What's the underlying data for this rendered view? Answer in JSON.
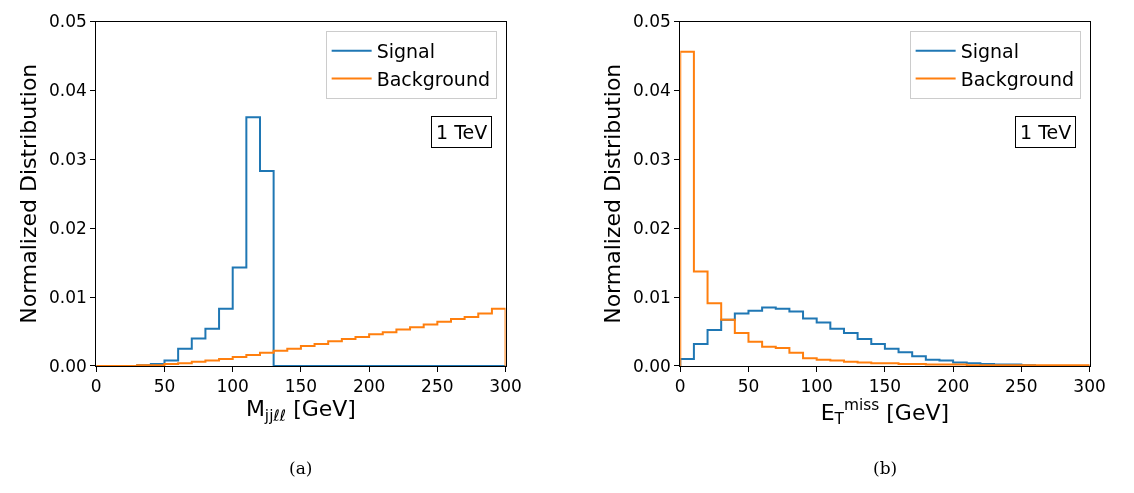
{
  "chart_data": [
    {
      "type": "histogram",
      "xlabel": "M$_{jjℓℓ}$ [GeV]",
      "ylabel": "Normalized Distribution",
      "bins": [
        0,
        10,
        20,
        30,
        40,
        50,
        60,
        70,
        80,
        90,
        100,
        110,
        120,
        130,
        140,
        150,
        160,
        170,
        180,
        190,
        200,
        210,
        220,
        230,
        240,
        250,
        260,
        270,
        280,
        290,
        300
      ],
      "series": [
        {
          "name": "Signal",
          "color": "#1f77b4",
          "values": [
            0,
            0,
            0,
            0.0001,
            0.0003,
            0.0008,
            0.0025,
            0.004,
            0.0054,
            0.0083,
            0.0143,
            0.0361,
            0.0283,
            0,
            0,
            0,
            0,
            0,
            0,
            0,
            0,
            0,
            0,
            0,
            0,
            0,
            0,
            0,
            0,
            0
          ]
        },
        {
          "name": "Background",
          "color": "#ff7f0e",
          "values": [
            0,
            0,
            0,
            0.0001,
            0.0001,
            0.0003,
            0.0004,
            0.0006,
            0.0008,
            0.001,
            0.0013,
            0.0016,
            0.0019,
            0.0022,
            0.0025,
            0.0029,
            0.0032,
            0.0036,
            0.0039,
            0.0042,
            0.0046,
            0.0049,
            0.0053,
            0.0056,
            0.006,
            0.0064,
            0.0068,
            0.0071,
            0.0076,
            0.0083
          ]
        }
      ],
      "xlim": [
        0,
        300
      ],
      "xticks": [
        0,
        50,
        100,
        150,
        200,
        250,
        300
      ],
      "ylim": [
        0,
        0.05
      ],
      "yticks": [
        {
          "value": 0,
          "label": "0.00"
        },
        {
          "value": 0.01,
          "label": "0.01"
        },
        {
          "value": 0.02,
          "label": "0.02"
        },
        {
          "value": 0.03,
          "label": "0.03"
        },
        {
          "value": 0.04,
          "label": "0.04"
        },
        {
          "value": 0.05,
          "label": "0.05"
        }
      ],
      "legend": "top right",
      "annotations": [
        "1 TeV",
        "(a)"
      ]
    },
    {
      "type": "histogram",
      "xlabel": "E$_{T}$$^{miss}$ [GeV]",
      "ylabel": "Normalized Distribution",
      "bins": [
        0,
        10,
        20,
        30,
        40,
        50,
        60,
        70,
        80,
        90,
        100,
        110,
        120,
        130,
        140,
        150,
        160,
        170,
        180,
        190,
        200,
        210,
        220,
        230,
        240,
        250,
        260,
        270,
        280,
        290,
        300
      ],
      "series": [
        {
          "name": "Signal",
          "color": "#1f77b4",
          "values": [
            0.001,
            0.0032,
            0.0052,
            0.0067,
            0.0076,
            0.008,
            0.0085,
            0.0083,
            0.0079,
            0.0069,
            0.0063,
            0.0054,
            0.0048,
            0.0039,
            0.0032,
            0.0025,
            0.002,
            0.0014,
            0.0009,
            0.0008,
            0.0005,
            0.0004,
            0.0003,
            0.0002,
            0.0002,
            0.0001,
            0,
            0,
            0,
            0
          ]
        },
        {
          "name": "Background",
          "color": "#ff7f0e",
          "values": [
            0.0456,
            0.0137,
            0.0091,
            0.0067,
            0.0048,
            0.0035,
            0.0028,
            0.0026,
            0.0019,
            0.0011,
            0.0009,
            0.0008,
            0.0006,
            0.0005,
            0.0004,
            0.0004,
            0.0003,
            0.0003,
            0.0002,
            0.0002,
            0.0002,
            0.0001,
            0.0001,
            0.0001,
            0.0001,
            0.0001,
            0.0001,
            0.0001,
            0.0001,
            0.0001
          ]
        }
      ],
      "xlim": [
        0,
        300
      ],
      "xticks": [
        0,
        50,
        100,
        150,
        200,
        250,
        300
      ],
      "ylim": [
        0,
        0.05
      ],
      "yticks": [
        {
          "value": 0,
          "label": "0.00"
        },
        {
          "value": 0.01,
          "label": "0.01"
        },
        {
          "value": 0.02,
          "label": "0.02"
        },
        {
          "value": 0.03,
          "label": "0.03"
        },
        {
          "value": 0.04,
          "label": "0.04"
        },
        {
          "value": 0.05,
          "label": "0.05"
        }
      ],
      "legend": "top right",
      "annotations": [
        "1 TeV",
        "(b)"
      ]
    }
  ]
}
